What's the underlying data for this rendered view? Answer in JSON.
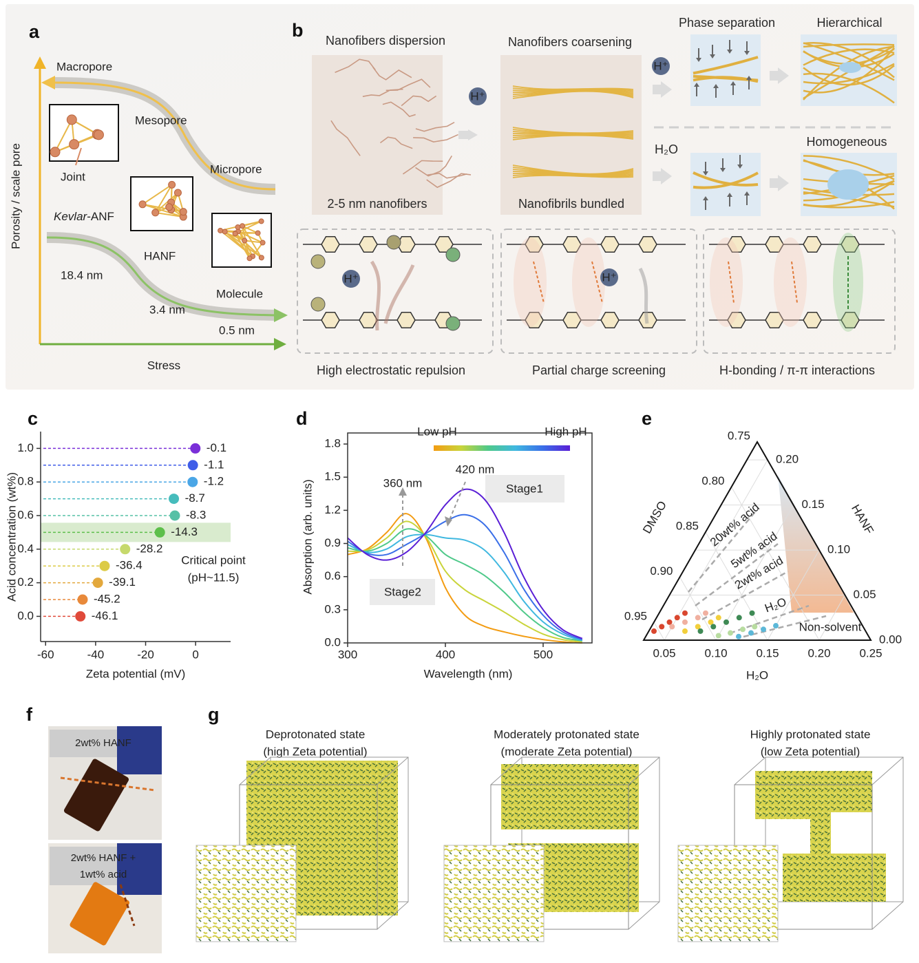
{
  "panels": {
    "a": {
      "label": "a",
      "y_axis": "Porosity / scale pore",
      "x_axis": "Stress",
      "macropore": "Macropore",
      "mesopore": "Mesopore",
      "micropore": "Micropore",
      "joint": "Joint",
      "kevlar": "Kevlar",
      "kevlar_suffix": "-ANF",
      "hanf": "HANF",
      "size_1": "18.4 nm",
      "size_2": "3.4 nm",
      "molecule": "Molecule",
      "size_3": "0.5 nm"
    },
    "b": {
      "label": "b",
      "dispersion": "Nanofibers dispersion",
      "coarsening": "Nanofibers coarsening",
      "phase_separation": "Phase separation",
      "hierarchical": "Hierarchical",
      "nanofibers": "2-5 nm nanofibers",
      "bundled": "Nanofibrils bundled",
      "water": "H₂O",
      "homogeneous": "Homogeneous",
      "repulsion": "High electrostatic repulsion",
      "screening": "Partial charge screening",
      "bonding": "H-bonding / π-π interactions",
      "proton": "H⁺"
    },
    "f": {
      "label": "f",
      "sample_1": "2wt% HANF",
      "sample_2": [
        "2wt% HANF +",
        "1wt% acid"
      ]
    },
    "g": {
      "label": "g",
      "states": [
        {
          "title": "Deprotonated state",
          "subtitle": "(high Zeta potential)"
        },
        {
          "title": "Moderately protonated state",
          "subtitle": "(moderate Zeta potential)"
        },
        {
          "title": "Highly protonated state",
          "subtitle": "(low Zeta potential)"
        }
      ]
    }
  },
  "chart_data": [
    {
      "type": "lollipop",
      "label": "c",
      "x_label": "Zeta potential (mV)",
      "y_label": "Acid concentration (wt%)",
      "x": [
        -46.1,
        -45.2,
        -39.1,
        -36.4,
        -28.2,
        -14.3,
        -8.3,
        -8.7,
        -1.2,
        -1.1,
        -0.1
      ],
      "values": [
        0,
        0.1,
        0.2,
        0.3,
        0.4,
        0.5,
        0.6,
        0.7,
        0.8,
        0.9,
        1.0
      ],
      "colors": [
        "#e04a3a",
        "#e8893a",
        "#e3a83c",
        "#dccb46",
        "#c6d96c",
        "#5dbf4b",
        "#57c0a6",
        "#46bcbc",
        "#4aa6e6",
        "#3f5de8",
        "#7a2fd8"
      ],
      "xlim": [
        -62,
        14
      ],
      "ylim": [
        -0.15,
        1.1
      ],
      "xticks": [
        -60,
        -40,
        -20,
        0
      ],
      "yticks": [
        {
          "value": 0,
          "label": "0.0"
        },
        0.2,
        0.4,
        0.6,
        0.8,
        {
          "value": 1.0,
          "label": "1.0"
        }
      ],
      "critical_point": 0.5,
      "annotation": [
        "Critical point",
        "(pH~11.5)"
      ]
    },
    {
      "type": "line",
      "label": "d",
      "x_label": "Wavelength (nm)",
      "y_label": "Absorption (arb. units)",
      "x": [
        300,
        320,
        340,
        360,
        380,
        400,
        420,
        440,
        460,
        480,
        500,
        520,
        540
      ],
      "series": [
        {
          "color": "#f39c12",
          "values": [
            0.8,
            0.85,
            1.0,
            1.17,
            0.95,
            0.5,
            0.25,
            0.15,
            0.1,
            0.06,
            0.03,
            0.01,
            0.0
          ]
        },
        {
          "color": "#c9d43a",
          "values": [
            0.83,
            0.84,
            0.95,
            1.1,
            0.96,
            0.65,
            0.48,
            0.38,
            0.28,
            0.17,
            0.08,
            0.03,
            0.01
          ]
        },
        {
          "color": "#4fc98a",
          "values": [
            0.86,
            0.83,
            0.9,
            1.03,
            0.97,
            0.8,
            0.71,
            0.61,
            0.46,
            0.28,
            0.14,
            0.05,
            0.02
          ]
        },
        {
          "color": "#40b8e0",
          "values": [
            0.89,
            0.82,
            0.85,
            0.96,
            0.98,
            0.95,
            0.93,
            0.84,
            0.64,
            0.38,
            0.19,
            0.08,
            0.02
          ]
        },
        {
          "color": "#3a6fe8",
          "values": [
            0.92,
            0.81,
            0.8,
            0.89,
            0.99,
            1.1,
            1.16,
            1.07,
            0.82,
            0.49,
            0.25,
            0.1,
            0.03
          ]
        },
        {
          "color": "#5a1fd6",
          "values": [
            0.95,
            0.8,
            0.75,
            0.82,
            1.0,
            1.25,
            1.39,
            1.3,
            1.0,
            0.6,
            0.3,
            0.12,
            0.04
          ]
        }
      ],
      "xlim": [
        300,
        550
      ],
      "ylim": [
        0,
        1.9
      ],
      "xticks": [
        300,
        400,
        500
      ],
      "yticks": [
        {
          "value": 0,
          "label": "0.0"
        },
        0.3,
        0.6,
        0.9,
        1.2,
        1.5,
        1.8
      ],
      "colorbar": [
        "Low pH",
        "High pH"
      ],
      "annotations": [
        "360 nm",
        "420 nm",
        "Stage1",
        "Stage2"
      ]
    },
    {
      "type": "ternary",
      "label": "e",
      "axis_labels": {
        "left": "DMSO",
        "right": "HANF",
        "bottom": "H₂O"
      },
      "h2o_lim": [
        0.03,
        0.25
      ],
      "left_ticks": [
        0.75,
        {
          "value": 0.8,
          "label": "0.80"
        },
        {
          "value": 0.85,
          "label": "0.85"
        },
        {
          "value": 0.9,
          "label": "0.90"
        },
        0.95
      ],
      "right_ticks": [
        {
          "value": 0.2,
          "label": "0.20"
        },
        0.15,
        {
          "value": 0.1,
          "label": "0.10"
        },
        0.05,
        {
          "value": 0,
          "label": "0.00"
        }
      ],
      "bottom_ticks": [
        0.05,
        {
          "value": 0.1,
          "label": "0.10"
        },
        0.15,
        {
          "value": 0.2,
          "label": "0.20"
        },
        0.25
      ],
      "annotations": [
        "20wt% acid",
        "5wt% acid",
        "2wt% acid",
        "H₂O",
        "Non-solvent"
      ],
      "series": [
        {
          "color": "#d9472f",
          "h2o": [
            0.035,
            0.04,
            0.045,
            0.05,
            0.055
          ],
          "hanf": [
            0.01,
            0.015,
            0.02,
            0.025,
            0.03
          ]
        },
        {
          "color": "#f0b0a0",
          "h2o": [
            0.05,
            0.06,
            0.07,
            0.075
          ],
          "hanf": [
            0.015,
            0.02,
            0.025,
            0.03
          ]
        },
        {
          "color": "#f2cf3c",
          "h2o": [
            0.065,
            0.075,
            0.085,
            0.09
          ],
          "hanf": [
            0.01,
            0.015,
            0.02,
            0.025
          ]
        },
        {
          "color": "#3f8a55",
          "h2o": [
            0.08,
            0.09,
            0.1,
            0.11,
            0.12
          ],
          "hanf": [
            0.01,
            0.015,
            0.02,
            0.025,
            0.03
          ]
        },
        {
          "color": "#b8dca0",
          "h2o": [
            0.1,
            0.11,
            0.12,
            0.13
          ],
          "hanf": [
            0.005,
            0.008,
            0.012,
            0.015
          ]
        },
        {
          "color": "#5cb8d8",
          "h2o": [
            0.12,
            0.13,
            0.14,
            0.15
          ],
          "hanf": [
            0.004,
            0.008,
            0.012,
            0.016
          ]
        }
      ]
    }
  ]
}
